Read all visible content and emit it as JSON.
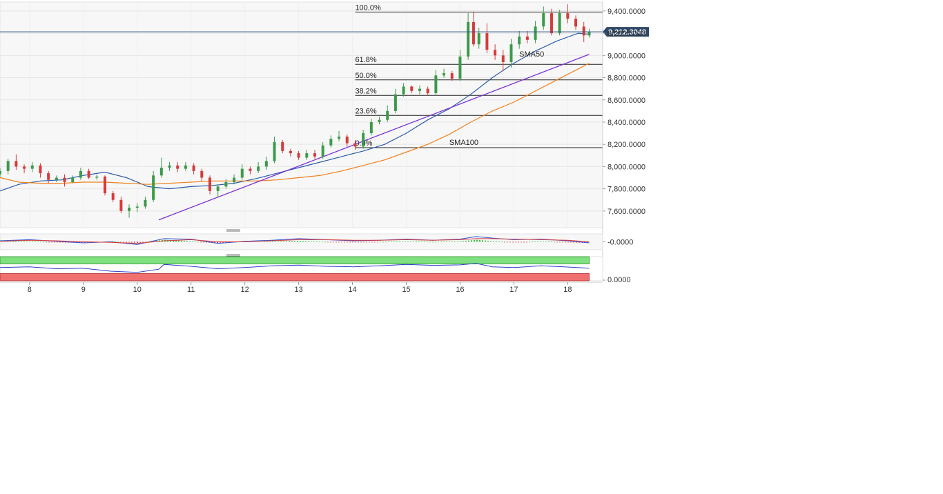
{
  "chart_data": {
    "type": "candlestick",
    "title": "",
    "xlabel": "",
    "ylabel": "",
    "ylim": [
      7450,
      9480
    ],
    "xlim": [
      7.45,
      18.65
    ],
    "grid": true,
    "last_price": 9212.3048,
    "last_price_label": "9,212.3048",
    "y_ticks": [
      {
        "value": 9400,
        "label": "9,400.0000"
      },
      {
        "value": 9200,
        "label": "9,200.0000"
      },
      {
        "value": 9000,
        "label": "9,000.0000"
      },
      {
        "value": 8800,
        "label": "8,800.0000"
      },
      {
        "value": 8600,
        "label": "8,600.0000"
      },
      {
        "value": 8400,
        "label": "8,400.0000"
      },
      {
        "value": 8200,
        "label": "8,200.0000"
      },
      {
        "value": 8000,
        "label": "8,000.0000"
      },
      {
        "value": 7800,
        "label": "7,800.0000"
      },
      {
        "value": 7600,
        "label": "7,600.0000"
      }
    ],
    "x_ticks": [
      {
        "value": 8,
        "label": "8"
      },
      {
        "value": 9,
        "label": "9"
      },
      {
        "value": 10,
        "label": "10"
      },
      {
        "value": 11,
        "label": "11"
      },
      {
        "value": 12,
        "label": "12"
      },
      {
        "value": 13,
        "label": "13"
      },
      {
        "value": 14,
        "label": "14"
      },
      {
        "value": 15,
        "label": "15"
      },
      {
        "value": 16,
        "label": "16"
      },
      {
        "value": 17,
        "label": "17"
      },
      {
        "value": 18,
        "label": "18"
      }
    ],
    "fibonacci": {
      "x_start": 14.05,
      "x_end": 18.7,
      "levels": [
        {
          "label": "100.0%",
          "value": 9390
        },
        {
          "label": "61.8%",
          "value": 8920
        },
        {
          "label": "50.0%",
          "value": 8780
        },
        {
          "label": "38.2%",
          "value": 8640
        },
        {
          "label": "23.6%",
          "value": 8460
        },
        {
          "label": "0.0%",
          "value": 8170
        }
      ]
    },
    "trendline": {
      "x": [
        10.4,
        18.4
      ],
      "y": [
        7520,
        9010
      ],
      "color": "#7a2fd6"
    },
    "moving_averages": [
      {
        "label": "SMA50",
        "label_at": {
          "x": 17.1,
          "y": 8990
        },
        "color": "#2a5caa",
        "x": [
          7.45,
          7.8,
          8.2,
          8.6,
          9.0,
          9.4,
          9.8,
          10.2,
          10.6,
          11.0,
          11.4,
          11.8,
          12.2,
          12.6,
          13.0,
          13.4,
          13.8,
          14.2,
          14.6,
          15.0,
          15.4,
          15.8,
          16.2,
          16.6,
          17.0,
          17.4,
          17.8,
          18.2,
          18.4
        ],
        "y": [
          7780,
          7840,
          7870,
          7880,
          7920,
          7950,
          7900,
          7820,
          7800,
          7820,
          7830,
          7850,
          7890,
          7940,
          7990,
          8040,
          8090,
          8140,
          8200,
          8300,
          8420,
          8520,
          8650,
          8800,
          8930,
          9040,
          9130,
          9200,
          9190
        ]
      },
      {
        "label": "SMA100",
        "label_at": {
          "x": 15.8,
          "y": 8195
        },
        "color": "#f07f1b",
        "x": [
          7.45,
          7.8,
          8.2,
          8.6,
          9.0,
          9.4,
          9.8,
          10.2,
          10.6,
          11.0,
          11.4,
          11.8,
          12.2,
          12.6,
          13.0,
          13.4,
          13.8,
          14.2,
          14.6,
          15.0,
          15.4,
          15.8,
          16.2,
          16.6,
          17.0,
          17.4,
          17.8,
          18.2,
          18.4
        ],
        "y": [
          7900,
          7860,
          7850,
          7850,
          7860,
          7860,
          7850,
          7840,
          7850,
          7860,
          7870,
          7870,
          7870,
          7880,
          7900,
          7920,
          7960,
          8010,
          8060,
          8130,
          8200,
          8290,
          8400,
          8500,
          8580,
          8680,
          8780,
          8880,
          8930
        ]
      }
    ],
    "candles": {
      "x": [
        7.45,
        7.6,
        7.75,
        7.9,
        8.05,
        8.2,
        8.35,
        8.5,
        8.65,
        8.8,
        8.95,
        9.1,
        9.25,
        9.4,
        9.55,
        9.7,
        9.85,
        10.0,
        10.15,
        10.3,
        10.45,
        10.6,
        10.75,
        10.9,
        11.05,
        11.2,
        11.35,
        11.5,
        11.65,
        11.8,
        11.95,
        12.1,
        12.25,
        12.4,
        12.55,
        12.7,
        12.85,
        13.0,
        13.15,
        13.3,
        13.45,
        13.6,
        13.75,
        13.9,
        14.05,
        14.2,
        14.35,
        14.5,
        14.65,
        14.8,
        14.95,
        15.1,
        15.25,
        15.4,
        15.55,
        15.7,
        15.85,
        16.0,
        16.15,
        16.25,
        16.35,
        16.5,
        16.65,
        16.8,
        16.95,
        17.1,
        17.25,
        17.4,
        17.55,
        17.7,
        17.85,
        18.0,
        18.15,
        18.3,
        18.4
      ],
      "open": [
        7930,
        7960,
        8050,
        8000,
        7980,
        8010,
        7940,
        7880,
        7900,
        7860,
        7900,
        7960,
        7900,
        7910,
        7760,
        7700,
        7600,
        7630,
        7640,
        7700,
        7920,
        7990,
        8010,
        7980,
        8010,
        7960,
        7900,
        7780,
        7820,
        7860,
        7900,
        7980,
        7960,
        8000,
        8050,
        8220,
        8140,
        8120,
        8080,
        8120,
        8090,
        8190,
        8250,
        8270,
        8210,
        8180,
        8300,
        8400,
        8420,
        8500,
        8650,
        8720,
        8680,
        8700,
        8660,
        8820,
        8840,
        8790,
        8990,
        9300,
        9100,
        9200,
        9050,
        9000,
        8940,
        9100,
        9170,
        9140,
        9260,
        9380,
        9200,
        9380,
        9330,
        9260,
        9180
      ],
      "close": [
        7960,
        8050,
        8000,
        7980,
        8010,
        7940,
        7880,
        7900,
        7860,
        7900,
        7960,
        7900,
        7910,
        7760,
        7700,
        7600,
        7630,
        7640,
        7700,
        7920,
        7990,
        8010,
        7980,
        8010,
        7960,
        7900,
        7780,
        7820,
        7860,
        7900,
        7980,
        7960,
        8000,
        8050,
        8220,
        8140,
        8120,
        8080,
        8120,
        8090,
        8190,
        8250,
        8270,
        8210,
        8180,
        8300,
        8400,
        8420,
        8500,
        8650,
        8720,
        8680,
        8700,
        8660,
        8820,
        8840,
        8790,
        8990,
        9300,
        9100,
        9200,
        9050,
        9000,
        8940,
        9100,
        9170,
        9140,
        9260,
        9380,
        9200,
        9380,
        9330,
        9260,
        9180,
        9212
      ],
      "high": [
        7990,
        8070,
        8110,
        8020,
        8040,
        8030,
        7960,
        7920,
        7930,
        7920,
        7990,
        7980,
        7930,
        7920,
        7780,
        7730,
        7660,
        7670,
        7730,
        7960,
        8080,
        8040,
        8040,
        8040,
        8030,
        7980,
        7920,
        7840,
        7890,
        7930,
        8020,
        8000,
        8040,
        8090,
        8270,
        8240,
        8160,
        8140,
        8150,
        8150,
        8220,
        8280,
        8320,
        8290,
        8240,
        8330,
        8430,
        8450,
        8550,
        8700,
        8750,
        8730,
        8730,
        8720,
        8870,
        8880,
        8860,
        9050,
        9380,
        9390,
        9250,
        9290,
        9100,
        9050,
        9150,
        9220,
        9220,
        9310,
        9440,
        9420,
        9410,
        9460,
        9360,
        9300,
        9240
      ],
      "low": [
        7900,
        7930,
        7970,
        7940,
        7950,
        7900,
        7850,
        7860,
        7820,
        7850,
        7880,
        7890,
        7880,
        7740,
        7680,
        7580,
        7540,
        7590,
        7620,
        7680,
        7900,
        7960,
        7950,
        7960,
        7930,
        7870,
        7750,
        7720,
        7800,
        7840,
        7880,
        7930,
        7940,
        7970,
        8030,
        8120,
        8090,
        8060,
        8060,
        8070,
        8070,
        8170,
        8230,
        8180,
        8150,
        8160,
        8280,
        8380,
        8400,
        8480,
        8630,
        8660,
        8650,
        8640,
        8640,
        8800,
        8770,
        8770,
        8960,
        9080,
        9060,
        9020,
        8960,
        8860,
        8890,
        9060,
        9110,
        9110,
        9230,
        9180,
        9180,
        9290,
        9230,
        9120,
        9160
      ]
    },
    "macd_panel": {
      "y_tick_label": "-0.0000",
      "x": [
        7.45,
        8.0,
        8.5,
        9.0,
        9.5,
        10.0,
        10.5,
        11.0,
        11.5,
        12.0,
        12.5,
        13.0,
        13.5,
        14.0,
        14.5,
        15.0,
        15.5,
        16.0,
        16.3,
        16.6,
        17.0,
        17.5,
        18.0,
        18.4
      ],
      "macd": [
        0.2,
        0.4,
        0.1,
        -0.2,
        0.0,
        -0.5,
        0.6,
        0.5,
        -0.3,
        0.1,
        0.3,
        0.6,
        0.4,
        0.2,
        0.3,
        0.5,
        0.3,
        0.5,
        1.0,
        0.7,
        0.4,
        0.5,
        0.2,
        -0.2
      ],
      "signal": [
        0.1,
        0.3,
        0.2,
        0.0,
        -0.1,
        -0.3,
        0.2,
        0.4,
        0.0,
        0.0,
        0.2,
        0.4,
        0.4,
        0.3,
        0.3,
        0.4,
        0.3,
        0.4,
        0.6,
        0.6,
        0.5,
        0.4,
        0.3,
        0.0
      ],
      "ylim": [
        -1.5,
        1.5
      ]
    },
    "rsi_panel": {
      "y_tick_label": "0.0000",
      "overbought": 70,
      "oversold": 30,
      "ylim": [
        0,
        100
      ],
      "x": [
        7.45,
        8.0,
        8.5,
        9.0,
        9.5,
        10.0,
        10.4,
        10.5,
        11.0,
        11.5,
        12.0,
        12.5,
        13.0,
        13.5,
        14.0,
        14.5,
        15.0,
        15.5,
        16.0,
        16.3,
        16.6,
        17.0,
        17.5,
        18.0,
        18.4
      ],
      "values": [
        55,
        58,
        50,
        52,
        40,
        35,
        48,
        68,
        60,
        50,
        55,
        62,
        65,
        60,
        58,
        62,
        68,
        64,
        66,
        72,
        58,
        55,
        62,
        57,
        52
      ]
    }
  }
}
